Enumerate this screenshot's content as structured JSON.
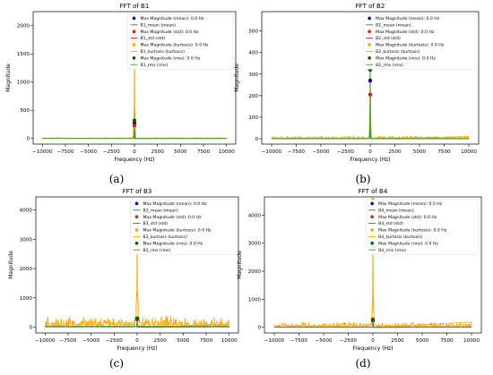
{
  "chart_data": [
    {
      "type": "line",
      "panel_label": "(a)",
      "title": "FFT of B1",
      "xlabel": "Frequency (Hz)",
      "ylabel": "Magnitude",
      "xlim": [
        -11000,
        11000
      ],
      "ylim": [
        -100,
        2250
      ],
      "xticks": [
        -10000,
        -7500,
        -5000,
        -2500,
        0,
        2500,
        5000,
        7500,
        10000
      ],
      "xtick_labels": [
        "−10000",
        "−7500",
        "−5000",
        "−2500",
        "0",
        "2500",
        "5000",
        "7500",
        "10000"
      ],
      "yticks": [
        0,
        500,
        1000,
        1500,
        2000
      ],
      "ytick_labels": [
        "0",
        "500",
        "1000",
        "1500",
        "2000"
      ],
      "legend": "top-right",
      "noise_level": 8,
      "peak_halfwidth": 150,
      "series": [
        {
          "name": "B1_mean (mean)",
          "color": "#1f77b4",
          "peak": 270
        },
        {
          "name": "B1_std (std)",
          "color": "#d62728",
          "peak": 230
        },
        {
          "name": "B1_kurtosis (kurtosis)",
          "color": "#ffa500",
          "peak": 2160
        },
        {
          "name": "B1_rms (rms)",
          "color": "#2ca02c",
          "peak": 320
        }
      ],
      "markers": [
        {
          "name": "Max Magnitude (mean): 0.0 Hz",
          "color": "#0000cd",
          "x": 0,
          "y": 270
        },
        {
          "name": "Max Magnitude (std): 0.0 Hz",
          "color": "#e31a1c",
          "x": 0,
          "y": 230
        },
        {
          "name": "Max Magnitude (kurtosis): 0.0 Hz",
          "color": "#ffa500",
          "x": 0,
          "y": 2160
        },
        {
          "name": "Max Magnitude (rms): 0.0 Hz",
          "color": "#006400",
          "x": 0,
          "y": 320
        }
      ]
    },
    {
      "type": "line",
      "panel_label": "(b)",
      "title": "FFT of B2",
      "xlabel": "Frequency (Hz)",
      "ylabel": "Magnitude",
      "xlim": [
        -11000,
        11000
      ],
      "ylim": [
        -25,
        590
      ],
      "xticks": [
        -10000,
        -7500,
        -5000,
        -2500,
        0,
        2500,
        5000,
        7500,
        10000
      ],
      "xtick_labels": [
        "−10000",
        "−7500",
        "−5000",
        "−2500",
        "0",
        "2500",
        "5000",
        "7500",
        "10000"
      ],
      "yticks": [
        0,
        100,
        200,
        300,
        400,
        500
      ],
      "ytick_labels": [
        "0",
        "100",
        "200",
        "300",
        "400",
        "500"
      ],
      "legend": "top-right",
      "noise_level": 6,
      "peak_halfwidth": 120,
      "series": [
        {
          "name": "B2_mean (mean)",
          "color": "#1f77b4",
          "peak": 270
        },
        {
          "name": "B2_std (std)",
          "color": "#d62728",
          "peak": 205
        },
        {
          "name": "B2_kurtosis (kurtosis)",
          "color": "#ffa500",
          "peak": 560
        },
        {
          "name": "B2_rms (rms)",
          "color": "#2ca02c",
          "peak": 320
        }
      ],
      "markers": [
        {
          "name": "Max Magnitude (mean): 0.0 Hz",
          "color": "#0000cd",
          "x": 0,
          "y": 270
        },
        {
          "name": "Max Magnitude (std): 0.0 Hz",
          "color": "#e31a1c",
          "x": 0,
          "y": 205
        },
        {
          "name": "Max Magnitude (kurtosis): 0.0 Hz",
          "color": "#ffa500",
          "x": 0,
          "y": 560
        },
        {
          "name": "Max Magnitude (rms): 0.0 Hz",
          "color": "#006400",
          "x": 0,
          "y": 320
        }
      ]
    },
    {
      "type": "line",
      "panel_label": "(c)",
      "title": "FFT of B3",
      "xlabel": "Frequency (Hz)",
      "ylabel": "Magnitude",
      "xlim": [
        -11000,
        11000
      ],
      "ylim": [
        -200,
        4450
      ],
      "xticks": [
        -10000,
        -7500,
        -5000,
        -2500,
        0,
        2500,
        5000,
        7500,
        10000
      ],
      "xtick_labels": [
        "−10000",
        "−7500",
        "−5000",
        "−2500",
        "0",
        "2500",
        "5000",
        "7500",
        "10000"
      ],
      "yticks": [
        0,
        1000,
        2000,
        3000,
        4000
      ],
      "ytick_labels": [
        "0",
        "1000",
        "2000",
        "3000",
        "4000"
      ],
      "legend": "top-right",
      "noise_level": 160,
      "peak_halfwidth": 250,
      "series": [
        {
          "name": "B3_mean (mean)",
          "color": "#1f77b4",
          "peak": 280
        },
        {
          "name": "B3_std (std)",
          "color": "#d62728",
          "peak": 260
        },
        {
          "name": "B3_kurtosis (kurtosis)",
          "color": "#ffa500",
          "peak": 4270
        },
        {
          "name": "B3_rms (rms)",
          "color": "#2ca02c",
          "peak": 300
        }
      ],
      "markers": [
        {
          "name": "Max Magnitude (mean): 0.0 Hz",
          "color": "#0000cd",
          "x": 0,
          "y": 280
        },
        {
          "name": "Max Magnitude (std): 0.0 Hz",
          "color": "#e31a1c",
          "x": 0,
          "y": 260
        },
        {
          "name": "Max Magnitude (kurtosis): 0.0 Hz",
          "color": "#ffa500",
          "x": 0,
          "y": 4270
        },
        {
          "name": "Max Magnitude (rms): 0.0 Hz",
          "color": "#006400",
          "x": 0,
          "y": 300
        }
      ]
    },
    {
      "type": "line",
      "panel_label": "(d)",
      "title": "FFT of B4",
      "xlabel": "Frequency (Hz)",
      "ylabel": "Magnitude",
      "xlim": [
        -11000,
        11000
      ],
      "ylim": [
        -200,
        4650
      ],
      "xticks": [
        -10000,
        -7500,
        -5000,
        -2500,
        0,
        2500,
        5000,
        7500,
        10000
      ],
      "xtick_labels": [
        "−10000",
        "−7500",
        "−5000",
        "−2500",
        "0",
        "2500",
        "5000",
        "7500",
        "10000"
      ],
      "yticks": [
        0,
        1000,
        2000,
        3000,
        4000
      ],
      "ytick_labels": [
        "0",
        "1000",
        "2000",
        "3000",
        "4000"
      ],
      "legend": "top-right",
      "noise_level": 90,
      "peak_halfwidth": 150,
      "series": [
        {
          "name": "B4_mean (mean)",
          "color": "#1f77b4",
          "peak": 260
        },
        {
          "name": "B4_std (std)",
          "color": "#d62728",
          "peak": 240
        },
        {
          "name": "B4_kurtosis (kurtosis)",
          "color": "#ffa500",
          "peak": 4550
        },
        {
          "name": "B4_rms (rms)",
          "color": "#2ca02c",
          "peak": 280
        }
      ],
      "markers": [
        {
          "name": "Max Magnitude (mean): 0.0 Hz",
          "color": "#0000cd",
          "x": 0,
          "y": 260
        },
        {
          "name": "Max Magnitude (std): 0.0 Hz",
          "color": "#e31a1c",
          "x": 0,
          "y": 240
        },
        {
          "name": "Max Magnitude (kurtosis): 0.0 Hz",
          "color": "#ffa500",
          "x": 0,
          "y": 4550
        },
        {
          "name": "Max Magnitude (rms): 0.0 Hz",
          "color": "#006400",
          "x": 0,
          "y": 280
        }
      ]
    }
  ]
}
